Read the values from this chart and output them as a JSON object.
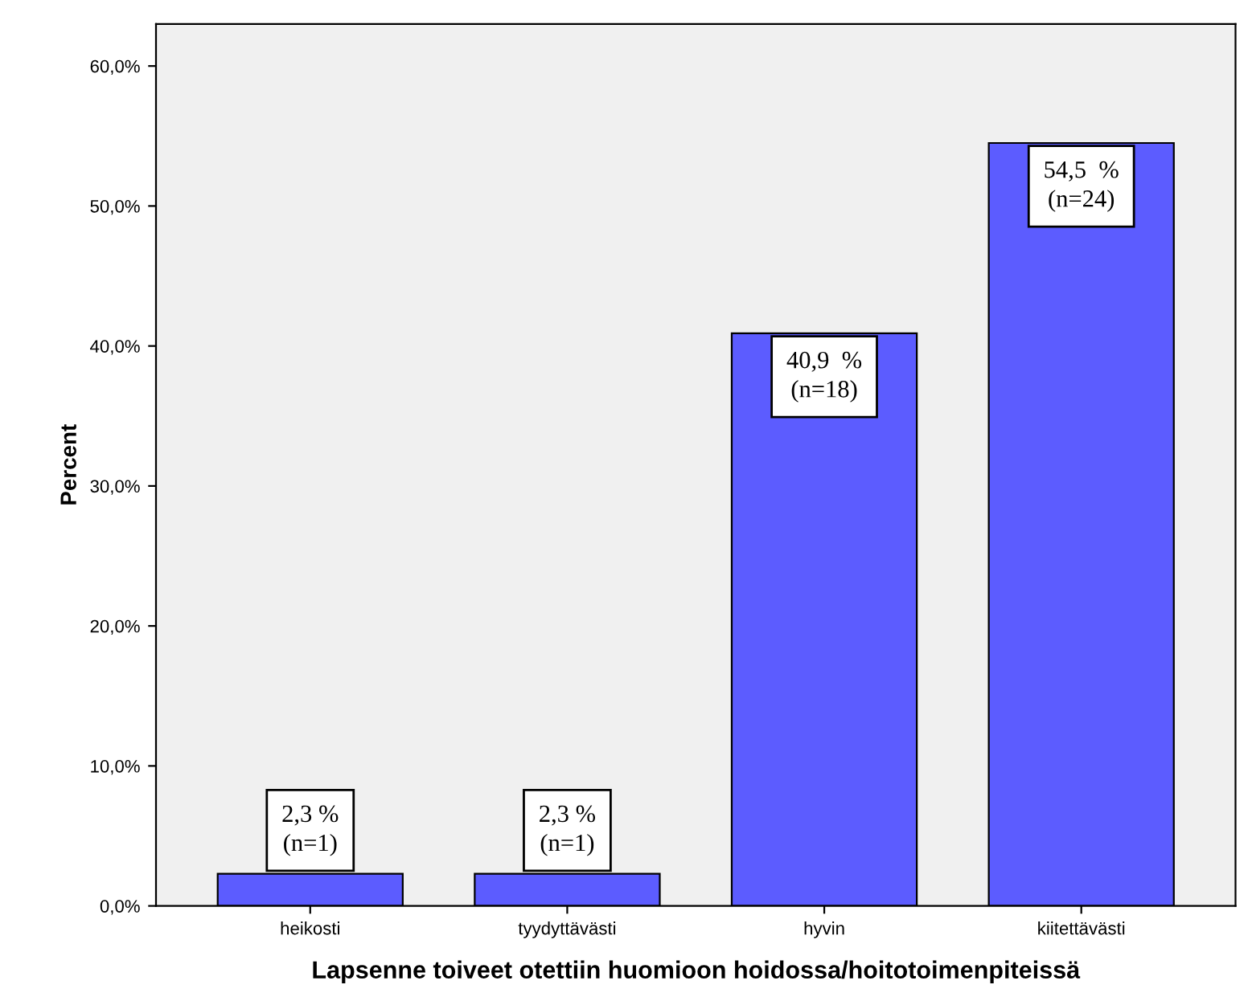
{
  "chart_data": {
    "type": "bar",
    "xlabel": "Lapsenne toiveet otettiin huomioon hoidossa/hoitotoimenpiteissä",
    "ylabel": "Percent",
    "categories": [
      "heikosti",
      "tyydyttävästi",
      "hyvin",
      "kiitettävästi"
    ],
    "values": [
      2.3,
      2.3,
      40.9,
      54.5
    ],
    "value_labels": [
      "2,3 %\n(n=1)",
      "2,3 %\n(n=1)",
      "40,9  %\n(n=18)",
      "54,5  %\n(n=24)"
    ],
    "color": "#5c5cff",
    "ylim": [
      0,
      63
    ],
    "yticks": [
      {
        "value": 0,
        "label": "0,0%"
      },
      {
        "value": 10,
        "label": "10,0%"
      },
      {
        "value": 20,
        "label": "20,0%"
      },
      {
        "value": 30,
        "label": "30,0%"
      },
      {
        "value": 40,
        "label": "40,0%"
      },
      {
        "value": 50,
        "label": "50,0%"
      },
      {
        "value": 60,
        "label": "60,0%"
      }
    ],
    "grid": false
  }
}
